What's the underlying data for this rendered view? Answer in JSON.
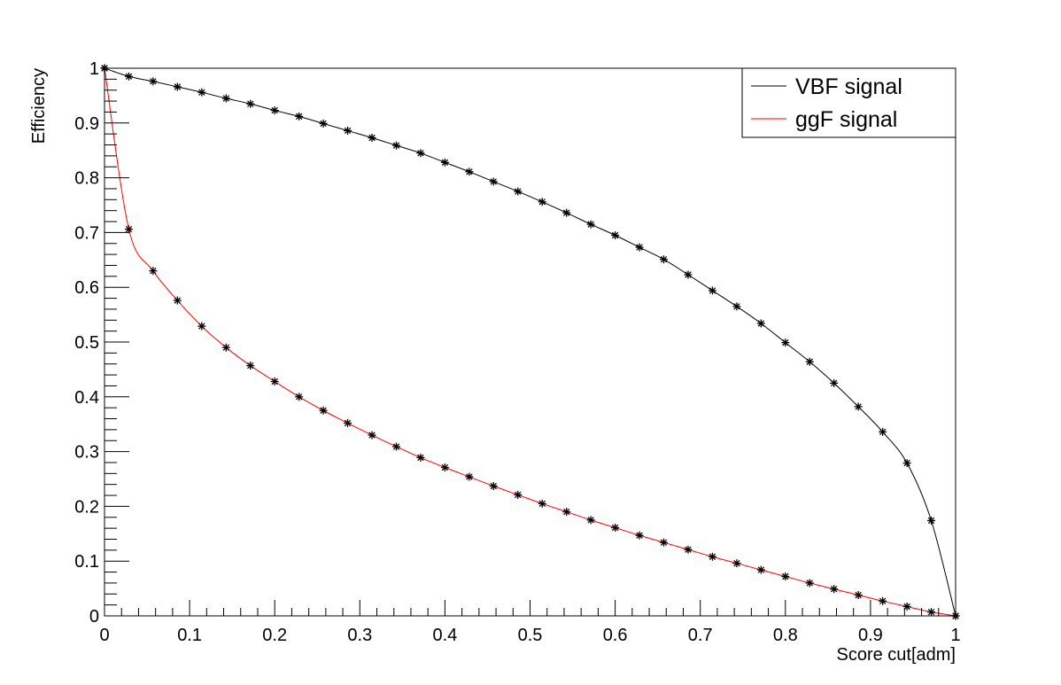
{
  "chart_data": {
    "type": "line",
    "title": "",
    "xlabel": "Score cut[adm]",
    "ylabel": "Efficiency",
    "xlim": [
      0,
      1
    ],
    "ylim": [
      0,
      1
    ],
    "x_ticks": [
      "0",
      "0.1",
      "0.2",
      "0.3",
      "0.4",
      "0.5",
      "0.6",
      "0.7",
      "0.8",
      "0.9",
      "1"
    ],
    "y_ticks": [
      "0",
      "0.1",
      "0.2",
      "0.3",
      "0.4",
      "0.5",
      "0.6",
      "0.7",
      "0.8",
      "0.9",
      "1"
    ],
    "grid": false,
    "legend_position": "top-right",
    "marker": "asterisk",
    "marker_color": "#000000",
    "series": [
      {
        "name": "VBF signal",
        "color": "#000000",
        "x": [
          0,
          0.0286,
          0.0571,
          0.0857,
          0.1143,
          0.1429,
          0.1714,
          0.2,
          0.2286,
          0.2571,
          0.2857,
          0.3143,
          0.3429,
          0.3714,
          0.4,
          0.4286,
          0.4571,
          0.4857,
          0.5143,
          0.5429,
          0.5714,
          0.6,
          0.6286,
          0.6571,
          0.6857,
          0.7143,
          0.7429,
          0.7714,
          0.8,
          0.8286,
          0.8571,
          0.8857,
          0.9143,
          0.9429,
          0.9714,
          1
        ],
        "y": [
          1.0,
          0.985,
          0.976,
          0.966,
          0.956,
          0.945,
          0.935,
          0.923,
          0.912,
          0.899,
          0.886,
          0.873,
          0.859,
          0.845,
          0.828,
          0.811,
          0.793,
          0.775,
          0.756,
          0.736,
          0.715,
          0.695,
          0.673,
          0.651,
          0.623,
          0.594,
          0.565,
          0.534,
          0.499,
          0.464,
          0.425,
          0.382,
          0.336,
          0.279,
          0.174,
          0.0
        ]
      },
      {
        "name": "ggF signal",
        "color": "#ff0000",
        "x": [
          0,
          0.0286,
          0.0571,
          0.0857,
          0.1143,
          0.1429,
          0.1714,
          0.2,
          0.2286,
          0.2571,
          0.2857,
          0.3143,
          0.3429,
          0.3714,
          0.4,
          0.4286,
          0.4571,
          0.4857,
          0.5143,
          0.5429,
          0.5714,
          0.6,
          0.6286,
          0.6571,
          0.6857,
          0.7143,
          0.7429,
          0.7714,
          0.8,
          0.8286,
          0.8571,
          0.8857,
          0.9143,
          0.9429,
          0.9714,
          1
        ],
        "y": [
          1.0,
          0.706,
          0.63,
          0.576,
          0.529,
          0.49,
          0.457,
          0.428,
          0.4,
          0.375,
          0.352,
          0.33,
          0.309,
          0.289,
          0.271,
          0.254,
          0.237,
          0.221,
          0.205,
          0.19,
          0.175,
          0.161,
          0.147,
          0.134,
          0.121,
          0.108,
          0.096,
          0.084,
          0.072,
          0.06,
          0.049,
          0.038,
          0.027,
          0.017,
          0.007,
          0.0
        ]
      }
    ]
  }
}
